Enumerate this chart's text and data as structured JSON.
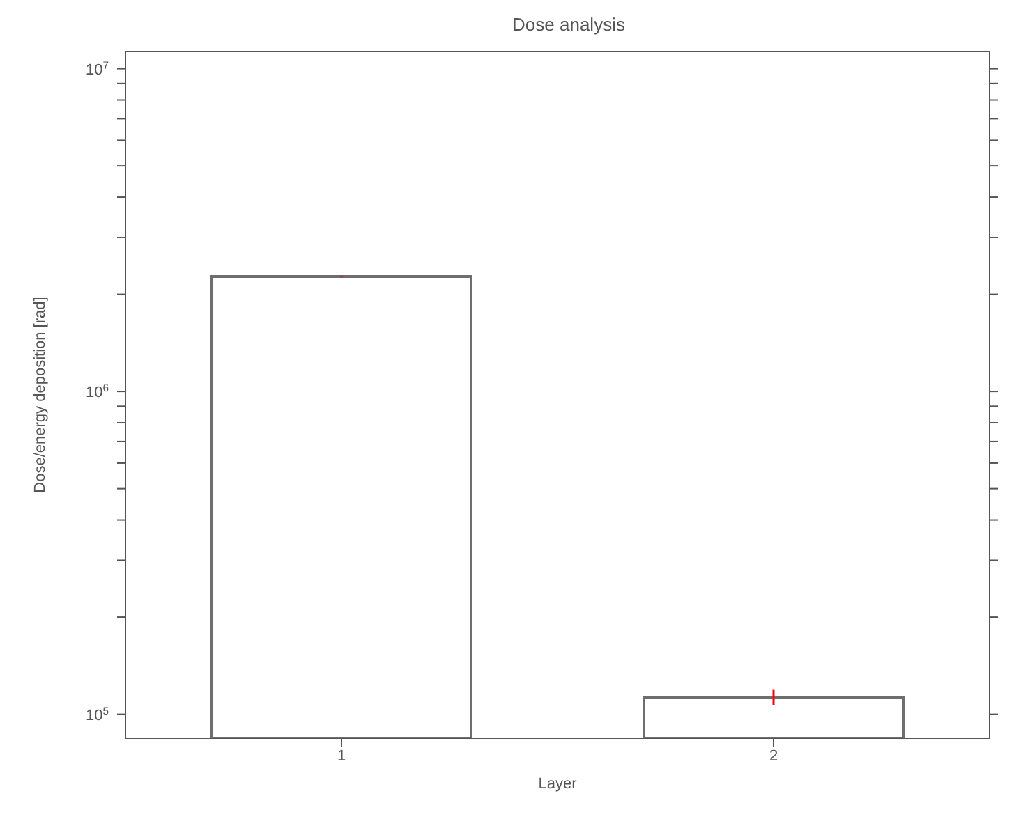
{
  "chart_data": {
    "type": "bar",
    "title": "Dose analysis",
    "xlabel": "Layer",
    "ylabel": "Dose/energy deposition [rad]",
    "categories": [
      "1",
      "2"
    ],
    "series": [
      {
        "color": "#6e6e6e",
        "values": [
          2270000,
          113000
        ],
        "errors": [
          10000,
          6000
        ]
      }
    ],
    "log": "y",
    "ylim": [
      84300,
      11300000
    ],
    "yticks": [
      {
        "value": 100000,
        "label": "10$^{5}$"
      },
      {
        "value": 200000,
        "label": null
      },
      {
        "value": 300000,
        "label": null
      },
      {
        "value": 400000,
        "label": null
      },
      {
        "value": 500000,
        "label": null
      },
      {
        "value": 600000,
        "label": null
      },
      {
        "value": 700000,
        "label": null
      },
      {
        "value": 800000,
        "label": null
      },
      {
        "value": 900000,
        "label": null
      },
      {
        "value": 1000000,
        "label": "10$^{6}$"
      },
      {
        "value": 2000000,
        "label": null
      },
      {
        "value": 3000000,
        "label": null
      },
      {
        "value": 4000000,
        "label": null
      },
      {
        "value": 5000000,
        "label": null
      },
      {
        "value": 6000000,
        "label": null
      },
      {
        "value": 7000000,
        "label": null
      },
      {
        "value": 8000000,
        "label": null
      },
      {
        "value": 9000000,
        "label": null
      },
      {
        "value": 10000000,
        "label": "10$^{7}$"
      }
    ],
    "grid": false,
    "legend": false
  }
}
